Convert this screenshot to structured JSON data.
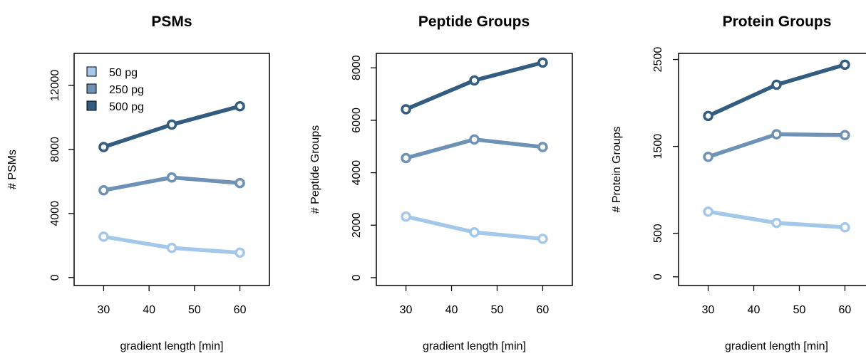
{
  "colors": {
    "series_50": "#a4c8ea",
    "series_250": "#6e92b6",
    "series_500": "#325c80",
    "frame": "#000000"
  },
  "chart_data": [
    {
      "type": "line",
      "title": "PSMs",
      "xlabel": "gradient length [min]",
      "ylabel": "# PSMs",
      "x": [
        30,
        45,
        60
      ],
      "xticks": [
        30,
        40,
        50,
        60
      ],
      "xlim": [
        23.5,
        66.5
      ],
      "yticks": [
        0,
        4000,
        8000,
        12000
      ],
      "ylim": [
        -500,
        14000
      ],
      "legend": {
        "placement": "top-left",
        "entries": [
          "50 pg",
          "250 pg",
          "500 pg"
        ]
      },
      "series": [
        {
          "name": "50 pg",
          "color_key": "series_50",
          "values": [
            2550,
            1850,
            1550
          ]
        },
        {
          "name": "250 pg",
          "color_key": "series_250",
          "values": [
            5450,
            6250,
            5900
          ]
        },
        {
          "name": "500 pg",
          "color_key": "series_500",
          "values": [
            8150,
            9550,
            10700
          ]
        }
      ]
    },
    {
      "type": "line",
      "title": "Peptide Groups",
      "xlabel": "gradient length [min]",
      "ylabel": "# Peptide Groups",
      "x": [
        30,
        45,
        60
      ],
      "xticks": [
        30,
        40,
        50,
        60
      ],
      "xlim": [
        23.5,
        66.5
      ],
      "yticks": [
        0,
        2000,
        4000,
        6000,
        8000
      ],
      "ylim": [
        -300,
        8550
      ],
      "series": [
        {
          "name": "50 pg",
          "color_key": "series_50",
          "values": [
            2330,
            1730,
            1480
          ]
        },
        {
          "name": "250 pg",
          "color_key": "series_250",
          "values": [
            4560,
            5270,
            4980
          ]
        },
        {
          "name": "500 pg",
          "color_key": "series_500",
          "values": [
            6420,
            7520,
            8200
          ]
        }
      ]
    },
    {
      "type": "line",
      "title": "Protein Groups",
      "xlabel": "gradient length [min]",
      "ylabel": "# Protein Groups",
      "x": [
        30,
        45,
        60
      ],
      "xticks": [
        30,
        40,
        50,
        60
      ],
      "xlim": [
        23.5,
        66.5
      ],
      "yticks": [
        0,
        500,
        1500,
        2500
      ],
      "ylim": [
        -100,
        2570
      ],
      "series": [
        {
          "name": "50 pg",
          "color_key": "series_50",
          "values": [
            750,
            620,
            570
          ]
        },
        {
          "name": "250 pg",
          "color_key": "series_250",
          "values": [
            1380,
            1640,
            1630
          ]
        },
        {
          "name": "500 pg",
          "color_key": "series_500",
          "values": [
            1850,
            2210,
            2440
          ]
        }
      ]
    }
  ]
}
